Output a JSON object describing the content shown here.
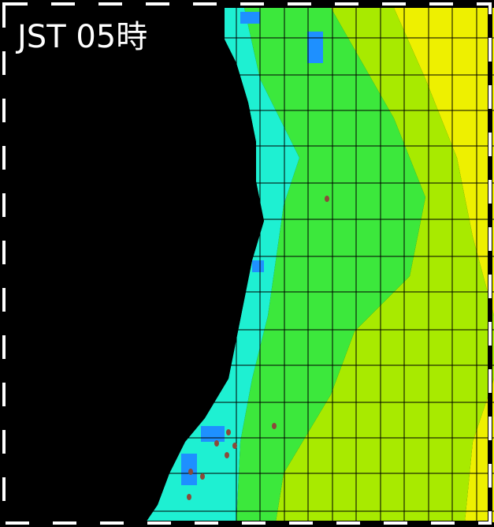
{
  "title": "JST 05時"
}
